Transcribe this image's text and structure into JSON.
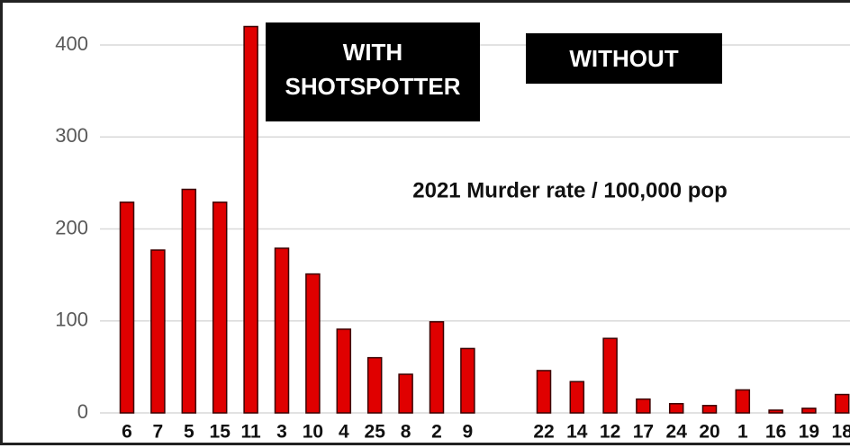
{
  "chart_data": {
    "type": "bar",
    "title": "2021 Murder rate / 100,000 pop",
    "groups": [
      {
        "label": "WITH SHOTSPOTTER",
        "categories": [
          "6",
          "7",
          "5",
          "15",
          "11",
          "3",
          "10",
          "4",
          "25",
          "8",
          "2",
          "9"
        ],
        "values": [
          229,
          177,
          243,
          229,
          420,
          179,
          151,
          91,
          60,
          42,
          99,
          70
        ]
      },
      {
        "label": "WITHOUT",
        "categories": [
          "22",
          "14",
          "12",
          "17",
          "24",
          "20",
          "1",
          "16",
          "19",
          "18"
        ],
        "values": [
          46,
          34,
          81,
          15,
          10,
          8,
          25,
          3,
          5,
          20
        ]
      }
    ],
    "color": "#e00000",
    "ylim": [
      0,
      420
    ],
    "yticks": [
      0,
      100,
      200,
      300,
      400
    ],
    "grid": true
  }
}
